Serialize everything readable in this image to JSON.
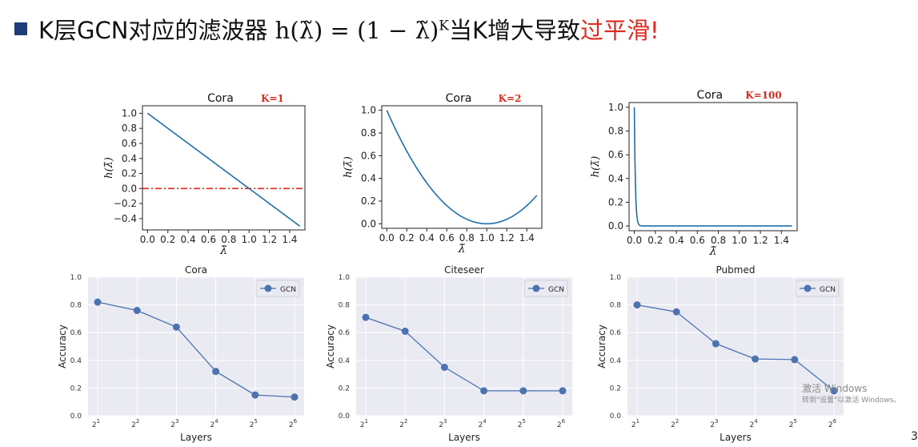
{
  "slide": {
    "title_prefix": "K层GCN对应的滤波器 ",
    "formula": "h(λ̃) = (1 − λ̃)",
    "formula_exp": "K",
    "title_mid": "当K增大导致",
    "title_highlight": "过平滑",
    "title_end": "!",
    "highlight_color": "#e02a1c",
    "bullet_color": "#1f3c7a",
    "watermark_line1": "激活 Windows",
    "watermark_line2": "转到\"设置\"以激活 Windows。",
    "page_number": "3"
  },
  "chart_data": [
    {
      "type": "line",
      "title": "Cora",
      "annotation": "K=1",
      "xlabel": "λ̃",
      "ylabel": "h(λ̃)",
      "xlim": [
        -0.05,
        1.55
      ],
      "ylim": [
        -0.55,
        1.1
      ],
      "xticks": [
        0.0,
        0.2,
        0.4,
        0.6,
        0.8,
        1.0,
        1.2,
        1.4
      ],
      "yticks": [
        -0.4,
        -0.2,
        0.0,
        0.2,
        0.4,
        0.6,
        0.8,
        1.0
      ],
      "function": "(1-x)^K",
      "K": 1,
      "x_range": [
        0,
        1.5
      ],
      "reference_line": {
        "y": 0.0,
        "color": "#e02a1c",
        "style": "dashdot"
      },
      "line_color": "#1f6fa8"
    },
    {
      "type": "line",
      "title": "Cora",
      "annotation": "K=2",
      "xlabel": "λ̃",
      "ylabel": "h(λ̃)",
      "xlim": [
        -0.05,
        1.55
      ],
      "ylim": [
        -0.04,
        1.04
      ],
      "xticks": [
        0.0,
        0.2,
        0.4,
        0.6,
        0.8,
        1.0,
        1.2,
        1.4
      ],
      "yticks": [
        0.0,
        0.2,
        0.4,
        0.6,
        0.8,
        1.0
      ],
      "function": "(1-x)^K",
      "K": 2,
      "x_range": [
        0,
        1.5
      ],
      "line_color": "#1f6fa8"
    },
    {
      "type": "line",
      "title": "Cora",
      "annotation": "K=100",
      "xlabel": "λ̃",
      "ylabel": "h(λ̃)",
      "xlim": [
        -0.05,
        1.55
      ],
      "ylim": [
        -0.04,
        1.04
      ],
      "xticks": [
        0.0,
        0.2,
        0.4,
        0.6,
        0.8,
        1.0,
        1.2,
        1.4
      ],
      "yticks": [
        0.0,
        0.2,
        0.4,
        0.6,
        0.8,
        1.0
      ],
      "function": "(1-x)^K",
      "K": 100,
      "x_range": [
        0,
        1.5
      ],
      "line_color": "#1f6fa8"
    },
    {
      "type": "line",
      "title": "Cora",
      "xlabel": "Layers",
      "ylabel": "Accuracy",
      "categories": [
        "2",
        "2",
        "2",
        "2",
        "2",
        "2"
      ],
      "category_exponents": [
        "1",
        "2",
        "3",
        "4",
        "5",
        "6"
      ],
      "ylim": [
        0.0,
        1.0
      ],
      "yticks": [
        0.0,
        0.2,
        0.4,
        0.6,
        0.8,
        1.0
      ],
      "series": [
        {
          "name": "GCN",
          "values": [
            0.82,
            0.76,
            0.64,
            0.32,
            0.15,
            0.135
          ]
        }
      ],
      "legend": "top-right",
      "grid": true,
      "line_color": "#4c72b0"
    },
    {
      "type": "line",
      "title": "Citeseer",
      "xlabel": "Layers",
      "ylabel": "Accuracy",
      "categories": [
        "2",
        "2",
        "2",
        "2",
        "2",
        "2"
      ],
      "category_exponents": [
        "1",
        "2",
        "3",
        "4",
        "5",
        "6"
      ],
      "ylim": [
        0.0,
        1.0
      ],
      "yticks": [
        0.0,
        0.2,
        0.4,
        0.6,
        0.8,
        1.0
      ],
      "series": [
        {
          "name": "GCN",
          "values": [
            0.71,
            0.61,
            0.35,
            0.18,
            0.18,
            0.18
          ]
        }
      ],
      "legend": "top-right",
      "grid": true,
      "line_color": "#4c72b0"
    },
    {
      "type": "line",
      "title": "Pubmed",
      "xlabel": "Layers",
      "ylabel": "Accuracy",
      "categories": [
        "2",
        "2",
        "2",
        "2",
        "2",
        "2"
      ],
      "category_exponents": [
        "1",
        "2",
        "3",
        "4",
        "5",
        "6"
      ],
      "ylim": [
        0.0,
        1.0
      ],
      "yticks": [
        0.0,
        0.2,
        0.4,
        0.6,
        0.8,
        1.0
      ],
      "series": [
        {
          "name": "GCN",
          "values": [
            0.8,
            0.75,
            0.52,
            0.41,
            0.405,
            0.18
          ]
        }
      ],
      "legend": "top-right",
      "grid": true,
      "line_color": "#4c72b0"
    }
  ]
}
